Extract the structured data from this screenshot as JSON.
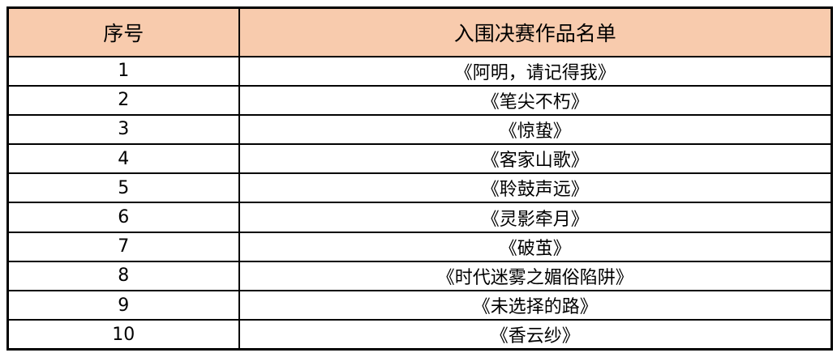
{
  "colors": {
    "header_bg": "#F8CBAD",
    "border": "#000000",
    "text": "#000000",
    "row_bg": "#FFFFFF"
  },
  "table": {
    "headers": {
      "no": "序号",
      "title": "入围决赛作品名单"
    },
    "rows": [
      {
        "no": "1",
        "title": "《阿明，请记得我》"
      },
      {
        "no": "2",
        "title": "《笔尖不朽》"
      },
      {
        "no": "3",
        "title": "《惊蛰》"
      },
      {
        "no": "4",
        "title": "《客家山歌》"
      },
      {
        "no": "5",
        "title": "《聆鼓声远》"
      },
      {
        "no": "6",
        "title": "《灵影牵月》"
      },
      {
        "no": "7",
        "title": "《破茧》"
      },
      {
        "no": "8",
        "title": "《时代迷雾之媚俗陷阱》"
      },
      {
        "no": "9",
        "title": "《未选择的路》"
      },
      {
        "no": "10",
        "title": "《香云纱》"
      }
    ]
  }
}
